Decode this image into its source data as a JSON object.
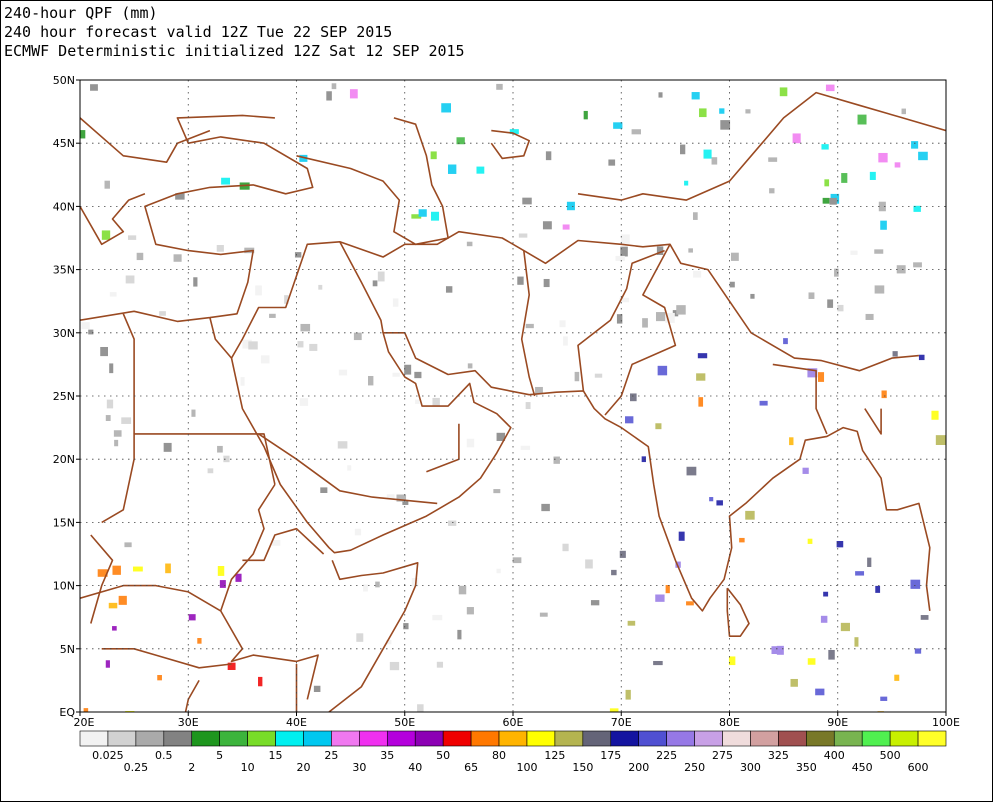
{
  "titles": {
    "line1": "240-hour QPF (mm)",
    "line2": "240 hour forecast valid 12Z Tue 22 SEP 2015",
    "line3": "ECMWF Deterministic initialized 12Z Sat 12 SEP 2015"
  },
  "map": {
    "lon_range": [
      20,
      100
    ],
    "lat_range": [
      0,
      50
    ],
    "lat_labels": [
      "EQ",
      "5N",
      "10N",
      "15N",
      "20N",
      "25N",
      "30N",
      "35N",
      "40N",
      "45N",
      "50N"
    ],
    "lon_labels": [
      "20E",
      "30E",
      "40E",
      "50E",
      "60E",
      "70E",
      "80E",
      "90E",
      "100E"
    ]
  },
  "legend": {
    "bins": [
      {
        "label": "0.025",
        "color": "#f2f2f2"
      },
      {
        "label": "0.25",
        "color": "#d2d2d2"
      },
      {
        "label": "0.5",
        "color": "#aaaaaa"
      },
      {
        "label": "2",
        "color": "#828282"
      },
      {
        "label": "5",
        "color": "#1e961e"
      },
      {
        "label": "10",
        "color": "#3cb43c"
      },
      {
        "label": "15",
        "color": "#78dc28"
      },
      {
        "label": "20",
        "color": "#00f0f0"
      },
      {
        "label": "25",
        "color": "#00c8f0"
      },
      {
        "label": "30",
        "color": "#f078f0"
      },
      {
        "label": "35",
        "color": "#f030f0"
      },
      {
        "label": "40",
        "color": "#b400dc"
      },
      {
        "label": "50",
        "color": "#8c00b4"
      },
      {
        "label": "65",
        "color": "#f00000"
      },
      {
        "label": "80",
        "color": "#ff7800"
      },
      {
        "label": "100",
        "color": "#ffb400"
      },
      {
        "label": "125",
        "color": "#ffff00"
      },
      {
        "label": "150",
        "color": "#b4b450"
      },
      {
        "label": "175",
        "color": "#646478"
      },
      {
        "label": "200",
        "color": "#1414a0"
      },
      {
        "label": "225",
        "color": "#5050d2"
      },
      {
        "label": "250",
        "color": "#9678e6"
      },
      {
        "label": "275",
        "color": "#c8a0e6"
      },
      {
        "label": "300",
        "color": "#f0dcdc"
      },
      {
        "label": "325",
        "color": "#d2a0a0"
      },
      {
        "label": "350",
        "color": "#a05050"
      },
      {
        "label": "400",
        "color": "#787828"
      },
      {
        "label": "450",
        "color": "#78b450"
      },
      {
        "label": "500",
        "color": "#50f050"
      },
      {
        "label": "600",
        "color": "#c8f000"
      }
    ],
    "end_color": "#ffff28"
  },
  "colors": {
    "border": "#9a4a22",
    "grid": "#444444"
  }
}
